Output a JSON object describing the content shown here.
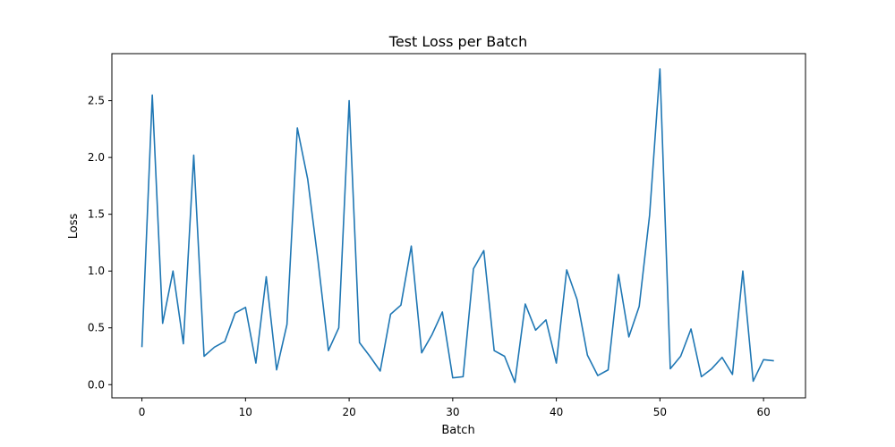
{
  "chart_data": {
    "type": "line",
    "title": "Test Loss per Batch",
    "xlabel": "Batch",
    "ylabel": "Loss",
    "xlim": [
      -2.9,
      64.05
    ],
    "ylim": [
      -0.116,
      2.914
    ],
    "xticks": [
      0,
      10,
      20,
      30,
      40,
      50,
      60
    ],
    "yticks": [
      0.0,
      0.5,
      1.0,
      1.5,
      2.0,
      2.5
    ],
    "ytick_labels": [
      "0.0",
      "0.5",
      "1.0",
      "1.5",
      "2.0",
      "2.5"
    ],
    "grid": false,
    "color": "#1f77b4",
    "x": [
      0,
      1,
      2,
      3,
      4,
      5,
      6,
      7,
      8,
      9,
      10,
      11,
      12,
      13,
      14,
      15,
      16,
      17,
      18,
      19,
      20,
      21,
      22,
      23,
      24,
      25,
      26,
      27,
      28,
      29,
      30,
      31,
      32,
      33,
      34,
      35,
      36,
      37,
      38,
      39,
      40,
      41,
      42,
      43,
      44,
      45,
      46,
      47,
      48,
      49,
      50,
      51,
      52,
      53,
      54,
      55,
      56,
      57,
      58,
      59,
      60,
      61
    ],
    "y": [
      0.33,
      2.55,
      0.54,
      1.0,
      0.36,
      2.02,
      0.25,
      0.33,
      0.38,
      0.63,
      0.68,
      0.19,
      0.95,
      0.13,
      0.53,
      2.26,
      1.81,
      1.09,
      0.3,
      0.5,
      2.5,
      0.37,
      0.25,
      0.12,
      0.62,
      0.7,
      1.22,
      0.28,
      0.44,
      0.64,
      0.06,
      0.07,
      1.02,
      1.18,
      0.3,
      0.25,
      0.02,
      0.71,
      0.48,
      0.57,
      0.19,
      1.01,
      0.75,
      0.26,
      0.08,
      0.13,
      0.97,
      0.42,
      0.69,
      1.49,
      2.78,
      0.14,
      0.25,
      0.49,
      0.07,
      0.14,
      0.24,
      0.09,
      1.0,
      0.03,
      0.22,
      0.21
    ]
  }
}
